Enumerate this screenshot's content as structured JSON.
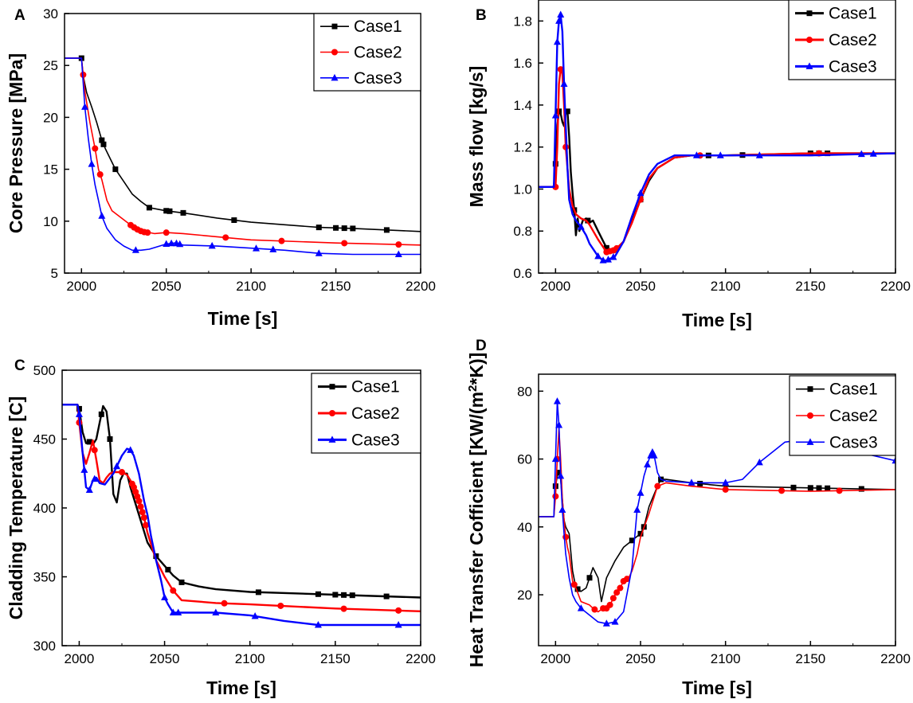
{
  "chart_data": [
    {
      "panel": "A",
      "type": "line",
      "xlabel": "Time [s]",
      "ylabel": "Core Pressure [MPa]",
      "xlim": [
        1990,
        2200
      ],
      "ylim": [
        5,
        30
      ],
      "xticks": [
        2000,
        2050,
        2100,
        2150,
        2200
      ],
      "yticks": [
        5,
        10,
        15,
        20,
        25,
        30
      ],
      "legend": "top-right",
      "series": [
        {
          "name": "Case1",
          "color": "#000000",
          "marker": "square",
          "x": [
            1990,
            2000,
            2001,
            2003,
            2006,
            2009,
            2012,
            2014,
            2017,
            2020,
            2025,
            2030,
            2035,
            2040,
            2050,
            2060,
            2080,
            2100,
            2140,
            2160,
            2200
          ],
          "y": [
            25.7,
            25.7,
            24.0,
            22.4,
            21.0,
            19.5,
            17.8,
            17.0,
            16.0,
            15.0,
            13.8,
            12.6,
            11.9,
            11.3,
            11.0,
            10.8,
            10.3,
            9.9,
            9.4,
            9.3,
            9.0
          ],
          "markers_x": [
            2000,
            2012,
            2013,
            2020,
            2040,
            2050,
            2052,
            2060,
            2090,
            2140,
            2150,
            2155,
            2160,
            2180
          ]
        },
        {
          "name": "Case2",
          "color": "#ff0000",
          "marker": "circle",
          "x": [
            1990,
            2000,
            2002,
            2005,
            2008,
            2010,
            2012,
            2015,
            2018,
            2022,
            2026,
            2030,
            2034,
            2038,
            2040,
            2043,
            2050,
            2060,
            2080,
            2100,
            2150,
            2200
          ],
          "y": [
            25.7,
            25.7,
            22.5,
            19.5,
            17.0,
            15.0,
            14.0,
            12.0,
            11.0,
            10.5,
            10.0,
            9.5,
            9.1,
            8.9,
            8.9,
            8.8,
            8.9,
            8.8,
            8.5,
            8.2,
            7.9,
            7.7
          ],
          "markers_x": [
            2001,
            2008,
            2011,
            2029,
            2031,
            2033,
            2035,
            2037,
            2039,
            2050,
            2085,
            2118,
            2155,
            2187
          ]
        },
        {
          "name": "Case3",
          "color": "#0000ff",
          "marker": "triangle",
          "x": [
            1990,
            2000,
            2002,
            2004,
            2006,
            2008,
            2010,
            2012,
            2015,
            2020,
            2025,
            2030,
            2035,
            2040,
            2050,
            2055,
            2060,
            2080,
            2100,
            2120,
            2140,
            2160,
            2200
          ],
          "y": [
            25.7,
            25.7,
            21.0,
            18.0,
            15.5,
            13.5,
            12.0,
            10.5,
            9.3,
            8.2,
            7.6,
            7.2,
            7.2,
            7.3,
            7.8,
            7.9,
            7.7,
            7.6,
            7.4,
            7.2,
            6.9,
            6.8,
            6.8
          ],
          "markers_x": [
            2002,
            2006,
            2012,
            2032,
            2050,
            2053,
            2056,
            2058,
            2077,
            2103,
            2113,
            2140,
            2187
          ]
        }
      ]
    },
    {
      "panel": "B",
      "type": "line",
      "xlabel": "Time [s]",
      "ylabel": "Mass flow [kg/s]",
      "xlim": [
        1990,
        2200
      ],
      "ylim": [
        0.6,
        1.9
      ],
      "xticks": [
        2000,
        2050,
        2100,
        2150,
        2200
      ],
      "yticks": [
        0.6,
        0.8,
        1.0,
        1.2,
        1.4,
        1.6,
        1.8
      ],
      "legend": "top-right",
      "series": [
        {
          "name": "Case1",
          "color": "#000000",
          "marker": "square",
          "x": [
            1990,
            1999,
            2000,
            2001,
            2002,
            2003,
            2004,
            2005,
            2006,
            2007,
            2008,
            2009,
            2010,
            2011,
            2012,
            2013,
            2014,
            2016,
            2018,
            2020,
            2022,
            2025,
            2030,
            2035,
            2040,
            2045,
            2050,
            2055,
            2060,
            2070,
            2080,
            2100,
            2150,
            2200
          ],
          "y": [
            1.01,
            1.01,
            1.12,
            1.3,
            1.37,
            1.36,
            1.32,
            1.3,
            1.36,
            1.37,
            1.25,
            1.08,
            0.98,
            0.9,
            0.78,
            0.86,
            0.8,
            0.85,
            0.86,
            0.84,
            0.85,
            0.8,
            0.72,
            0.7,
            0.75,
            0.85,
            0.95,
            1.04,
            1.1,
            1.15,
            1.16,
            1.16,
            1.17,
            1.17
          ],
          "markers_x": [
            2000,
            2002,
            2007,
            2011,
            2019,
            2030,
            2050,
            2090,
            2110,
            2150,
            2155,
            2160
          ]
        },
        {
          "name": "Case2",
          "color": "#ff0000",
          "marker": "circle",
          "x": [
            1990,
            1999,
            2000,
            2001,
            2002,
            2003,
            2004,
            2005,
            2006,
            2007,
            2008,
            2010,
            2012,
            2015,
            2018,
            2020,
            2025,
            2030,
            2035,
            2040,
            2045,
            2050,
            2055,
            2060,
            2070,
            2080,
            2100,
            2150,
            2200
          ],
          "y": [
            1.01,
            1.01,
            1.01,
            1.2,
            1.5,
            1.57,
            1.55,
            1.4,
            1.2,
            1.1,
            1.0,
            0.92,
            0.88,
            0.86,
            0.85,
            0.83,
            0.76,
            0.7,
            0.71,
            0.75,
            0.84,
            0.95,
            1.05,
            1.1,
            1.15,
            1.16,
            1.16,
            1.17,
            1.17
          ],
          "markers_x": [
            2000,
            2003,
            2006,
            2030,
            2032,
            2034,
            2036,
            2050,
            2085,
            2155
          ]
        },
        {
          "name": "Case3",
          "color": "#0000ff",
          "marker": "triangle",
          "x": [
            1990,
            1999,
            2000,
            2001,
            2002,
            2003,
            2004,
            2005,
            2006,
            2007,
            2008,
            2010,
            2012,
            2015,
            2018,
            2020,
            2025,
            2028,
            2030,
            2035,
            2040,
            2045,
            2050,
            2055,
            2060,
            2070,
            2080,
            2100,
            2150,
            2200
          ],
          "y": [
            1.01,
            1.01,
            1.35,
            1.7,
            1.8,
            1.83,
            1.75,
            1.5,
            1.3,
            1.1,
            0.95,
            0.88,
            0.85,
            0.82,
            0.78,
            0.74,
            0.68,
            0.66,
            0.66,
            0.68,
            0.75,
            0.87,
            0.98,
            1.07,
            1.12,
            1.16,
            1.16,
            1.16,
            1.16,
            1.17
          ],
          "markers_x": [
            2000,
            2001,
            2002,
            2003,
            2005,
            2015,
            2025,
            2028,
            2031,
            2034,
            2050,
            2083,
            2097,
            2120,
            2180,
            2187
          ]
        }
      ]
    },
    {
      "panel": "C",
      "type": "line",
      "xlabel": "Time [s]",
      "ylabel": "Cladding Temperature [C]",
      "xlim": [
        1990,
        2200
      ],
      "ylim": [
        300,
        500
      ],
      "xticks": [
        2000,
        2050,
        2100,
        2150,
        2200
      ],
      "yticks": [
        300,
        350,
        400,
        450,
        500
      ],
      "legend": "top-right",
      "series": [
        {
          "name": "Case1",
          "color": "#000000",
          "marker": "square",
          "x": [
            1990,
            1999,
            2000,
            2002,
            2004,
            2006,
            2008,
            2010,
            2012,
            2014,
            2016,
            2018,
            2020,
            2022,
            2024,
            2026,
            2028,
            2030,
            2035,
            2040,
            2045,
            2050,
            2055,
            2060,
            2070,
            2080,
            2100,
            2150,
            2200
          ],
          "y": [
            475,
            475,
            472,
            455,
            447,
            448,
            446,
            450,
            462,
            474,
            470,
            450,
            410,
            404,
            420,
            425,
            425,
            415,
            395,
            375,
            365,
            358,
            351,
            346,
            343,
            341,
            339,
            337,
            335
          ],
          "markers_x": [
            2000,
            2006,
            2013,
            2018,
            2045,
            2052,
            2060,
            2105,
            2140,
            2150,
            2155,
            2160,
            2180
          ]
        },
        {
          "name": "Case2",
          "color": "#ff0000",
          "marker": "circle",
          "x": [
            1990,
            1999,
            2000,
            2002,
            2004,
            2006,
            2008,
            2010,
            2012,
            2014,
            2016,
            2018,
            2020,
            2025,
            2028,
            2030,
            2032,
            2035,
            2038,
            2040,
            2043,
            2045,
            2048,
            2050,
            2055,
            2060,
            2080,
            2100,
            2150,
            2200
          ],
          "y": [
            475,
            475,
            462,
            440,
            432,
            440,
            449,
            435,
            420,
            418,
            422,
            425,
            426,
            426,
            424,
            420,
            415,
            405,
            393,
            382,
            370,
            362,
            355,
            350,
            340,
            333,
            331,
            330,
            327,
            325
          ],
          "markers_x": [
            2000,
            2009,
            2025,
            2031,
            2032,
            2033,
            2034,
            2035,
            2036,
            2037,
            2038,
            2039,
            2055,
            2085,
            2118,
            2155,
            2187
          ]
        },
        {
          "name": "Case3",
          "color": "#0000ff",
          "marker": "triangle",
          "x": [
            1990,
            1999,
            2000,
            2002,
            2004,
            2006,
            2008,
            2010,
            2012,
            2015,
            2020,
            2025,
            2028,
            2030,
            2032,
            2035,
            2038,
            2040,
            2042,
            2045,
            2048,
            2050,
            2052,
            2055,
            2060,
            2080,
            2100,
            2120,
            2140,
            2200
          ],
          "y": [
            475,
            475,
            468,
            440,
            415,
            413,
            420,
            422,
            418,
            417,
            425,
            438,
            443,
            442,
            438,
            425,
            405,
            395,
            380,
            362,
            347,
            335,
            330,
            324,
            324,
            324,
            322,
            318,
            315,
            315
          ],
          "markers_x": [
            2000,
            2003,
            2006,
            2009,
            2022,
            2030,
            2050,
            2055,
            2058,
            2080,
            2103,
            2140,
            2187
          ]
        }
      ]
    },
    {
      "panel": "D",
      "type": "line",
      "xlabel": "Time [s]",
      "ylabel": "Heat Transfer Cofficient [KW/(m^2*K)]",
      "xlim": [
        1990,
        2200
      ],
      "ylim": [
        5,
        85
      ],
      "xticks": [
        2000,
        2050,
        2100,
        2150,
        2200
      ],
      "yticks": [
        20,
        40,
        60,
        80
      ],
      "legend": "top-right",
      "series": [
        {
          "name": "Case1",
          "color": "#000000",
          "marker": "square",
          "x": [
            1990,
            1999,
            2000,
            2001,
            2002,
            2003,
            2004,
            2005,
            2006,
            2008,
            2010,
            2012,
            2015,
            2018,
            2020,
            2022,
            2025,
            2027,
            2030,
            2035,
            2040,
            2045,
            2050,
            2052,
            2055,
            2060,
            2062,
            2065,
            2080,
            2100,
            2150,
            2200
          ],
          "y": [
            43,
            43,
            52,
            55,
            56,
            54,
            48,
            42,
            40,
            38,
            27,
            22,
            21,
            22,
            25,
            28,
            25,
            18,
            25,
            30,
            34,
            36,
            38,
            40,
            46,
            52,
            54,
            54,
            53,
            52,
            51.5,
            51
          ],
          "markers_x": [
            2000,
            2002,
            2013,
            2020,
            2045,
            2050,
            2052,
            2062,
            2085,
            2140,
            2150,
            2155,
            2160,
            2180
          ]
        },
        {
          "name": "Case2",
          "color": "#ff0000",
          "marker": "circle",
          "x": [
            1990,
            1999,
            2000,
            2001,
            2002,
            2003,
            2004,
            2005,
            2006,
            2007,
            2008,
            2010,
            2012,
            2015,
            2020,
            2022,
            2025,
            2028,
            2030,
            2032,
            2035,
            2038,
            2040,
            2043,
            2045,
            2048,
            2050,
            2055,
            2060,
            2065,
            2080,
            2100,
            2150,
            2200
          ],
          "y": [
            43,
            43,
            49,
            60,
            69,
            60,
            48,
            42,
            37,
            34,
            32,
            24,
            22,
            18,
            17,
            16,
            15,
            16,
            16,
            17,
            20,
            22,
            24,
            25,
            27,
            32,
            37,
            44,
            52,
            53,
            52,
            51,
            50.5,
            51
          ],
          "markers_x": [
            2000,
            2001,
            2006,
            2011,
            2023,
            2028,
            2030,
            2032,
            2034,
            2036,
            2038,
            2040,
            2042,
            2060,
            2100,
            2133,
            2167
          ]
        },
        {
          "name": "Case3",
          "color": "#0000ff",
          "marker": "triangle",
          "x": [
            1990,
            1999,
            2000,
            2001,
            2002,
            2003,
            2004,
            2005,
            2006,
            2008,
            2010,
            2012,
            2015,
            2020,
            2025,
            2030,
            2035,
            2040,
            2045,
            2048,
            2050,
            2052,
            2055,
            2057,
            2058,
            2060,
            2062,
            2065,
            2080,
            2100,
            2110,
            2120,
            2130,
            2135,
            2150,
            2170,
            2200
          ],
          "y": [
            43,
            43,
            60,
            77,
            70,
            55,
            45,
            38,
            32,
            25,
            20,
            18,
            16,
            14,
            12,
            11.5,
            12,
            15,
            28,
            45,
            50,
            55,
            60,
            62,
            61,
            56,
            54,
            53.5,
            53,
            53,
            54,
            59,
            63,
            65,
            66,
            63,
            59.5
          ],
          "markers_x": [
            2000,
            2001,
            2002,
            2003,
            2004,
            2015,
            2030,
            2035,
            2048,
            2050,
            2054,
            2056,
            2057,
            2058,
            2080,
            2100,
            2120,
            2140,
            2200
          ]
        }
      ]
    }
  ]
}
